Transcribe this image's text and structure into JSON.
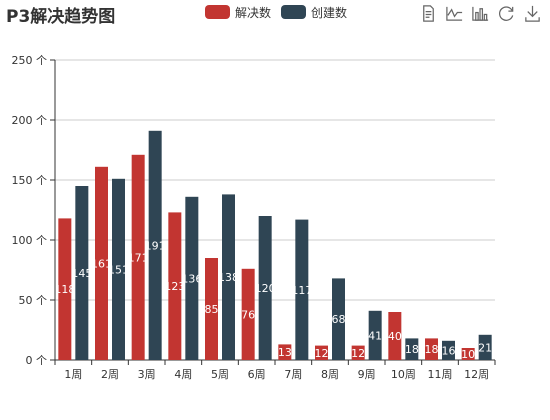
{
  "title": "P3解决趋势图",
  "legend": [
    {
      "name": "解决数",
      "color": "#c23531"
    },
    {
      "name": "创建数",
      "color": "#2f4554"
    }
  ],
  "toolbox": [
    {
      "icon": "data-view-icon"
    },
    {
      "icon": "line-chart-icon"
    },
    {
      "icon": "bar-chart-icon"
    },
    {
      "icon": "restore-icon"
    },
    {
      "icon": "download-icon"
    }
  ],
  "chart_data": {
    "type": "bar",
    "title": "P3解决趋势图",
    "categories": [
      "1周",
      "2周",
      "3周",
      "4周",
      "5周",
      "6周",
      "7周",
      "8周",
      "9周",
      "10周",
      "11周",
      "12周"
    ],
    "series": [
      {
        "name": "解决数",
        "color": "#c23531",
        "values": [
          118,
          161,
          171,
          123,
          85,
          76,
          13,
          12,
          12,
          40,
          18,
          10
        ]
      },
      {
        "name": "创建数",
        "color": "#2f4554",
        "values": [
          145,
          151,
          191,
          136,
          138,
          120,
          117,
          68,
          41,
          18,
          16,
          21
        ]
      }
    ],
    "ylim": [
      0,
      250
    ],
    "yticks": [
      0,
      50,
      100,
      150,
      200,
      250
    ],
    "ytick_labels": [
      "0 个",
      "50 个",
      "100 个",
      "150 个",
      "200 个",
      "250 个"
    ],
    "grid": true,
    "legend_position": "top-center",
    "data_labels": "inside"
  }
}
